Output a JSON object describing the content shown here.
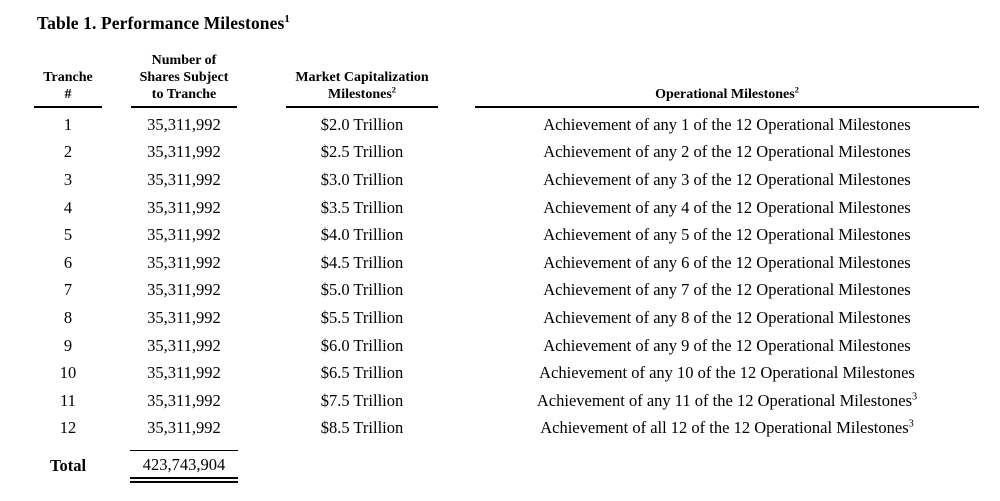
{
  "title": {
    "text": "Table 1. Performance Milestones",
    "superscript": "1"
  },
  "table": {
    "header": {
      "tranche": {
        "line1": "Tranche",
        "line2": "#"
      },
      "shares": {
        "line1": "Number of",
        "line2": "Shares Subject",
        "line3": "to Tranche"
      },
      "market_cap": {
        "line1": "Market Capitalization",
        "line2": "Milestones",
        "superscript": "2"
      },
      "operational": {
        "label": "Operational Milestones",
        "superscript": "2"
      }
    },
    "rows": [
      {
        "tranche": "1",
        "shares": "35,311,992",
        "market_cap": "$2.0 Trillion",
        "operational": "Achievement of any 1 of the 12 Operational Milestones",
        "operational_superscript": ""
      },
      {
        "tranche": "2",
        "shares": "35,311,992",
        "market_cap": "$2.5 Trillion",
        "operational": "Achievement of any 2 of the 12 Operational Milestones",
        "operational_superscript": ""
      },
      {
        "tranche": "3",
        "shares": "35,311,992",
        "market_cap": "$3.0 Trillion",
        "operational": "Achievement of any 3 of the 12 Operational Milestones",
        "operational_superscript": ""
      },
      {
        "tranche": "4",
        "shares": "35,311,992",
        "market_cap": "$3.5 Trillion",
        "operational": "Achievement of any 4 of the 12 Operational Milestones",
        "operational_superscript": ""
      },
      {
        "tranche": "5",
        "shares": "35,311,992",
        "market_cap": "$4.0 Trillion",
        "operational": "Achievement of any 5 of the 12 Operational Milestones",
        "operational_superscript": ""
      },
      {
        "tranche": "6",
        "shares": "35,311,992",
        "market_cap": "$4.5 Trillion",
        "operational": "Achievement of any 6 of the 12 Operational Milestones",
        "operational_superscript": ""
      },
      {
        "tranche": "7",
        "shares": "35,311,992",
        "market_cap": "$5.0 Trillion",
        "operational": "Achievement of any 7 of the 12 Operational Milestones",
        "operational_superscript": ""
      },
      {
        "tranche": "8",
        "shares": "35,311,992",
        "market_cap": "$5.5 Trillion",
        "operational": "Achievement of any 8 of the 12 Operational Milestones",
        "operational_superscript": ""
      },
      {
        "tranche": "9",
        "shares": "35,311,992",
        "market_cap": "$6.0 Trillion",
        "operational": "Achievement of any 9 of the 12 Operational Milestones",
        "operational_superscript": ""
      },
      {
        "tranche": "10",
        "shares": "35,311,992",
        "market_cap": "$6.5 Trillion",
        "operational": "Achievement of any 10 of the 12 Operational Milestones",
        "operational_superscript": ""
      },
      {
        "tranche": "11",
        "shares": "35,311,992",
        "market_cap": "$7.5 Trillion",
        "operational": "Achievement of any 11 of the 12 Operational Milestones",
        "operational_superscript": "3"
      },
      {
        "tranche": "12",
        "shares": "35,311,992",
        "market_cap": "$8.5 Trillion",
        "operational": "Achievement of all 12 of the 12 Operational Milestones",
        "operational_superscript": "3"
      }
    ],
    "total": {
      "label": "Total",
      "shares": "423,743,904"
    }
  }
}
